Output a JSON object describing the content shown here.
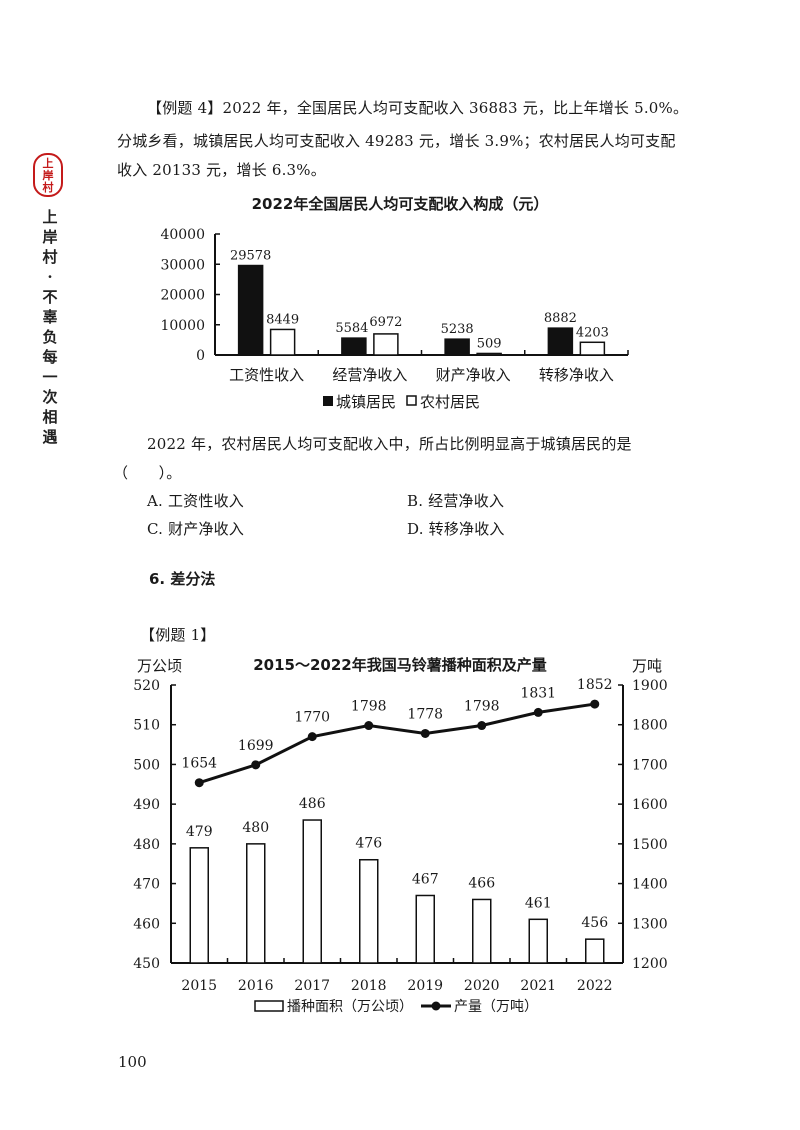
{
  "sidebar": {
    "stamp_text": [
      "上",
      "岸",
      "村"
    ],
    "slogan_chars": [
      "上",
      "岸",
      "村",
      "·",
      "不",
      "辜",
      "负",
      "每",
      "一",
      "次",
      "相",
      "遇"
    ]
  },
  "example4": {
    "line1": "【例题 4】2022 年，全国居民人均可支配收入 36883 元，比上年增长 5.0%。",
    "line2": "分城乡看，城镇居民人均可支配收入 49283 元，增长 3.9%；农村居民人均可支配",
    "line3": "收入 20133 元，增长 6.3%。",
    "question_line1": "2022 年，农村居民人均可支配收入中，所占比例明显高于城镇居民的是",
    "question_line2": "（　　）。",
    "options": {
      "A": "A. 工资性收入",
      "B": "B. 经营净收入",
      "C": "C. 财产净收入",
      "D": "D. 转移净收入"
    }
  },
  "section_heading": "6. 差分法",
  "example1_label": "【例题 1】",
  "page_number": "100",
  "chart_data": [
    {
      "type": "bar",
      "title": "2022年全国居民人均可支配收入构成（元）",
      "categories": [
        "工资性收入",
        "经营净收入",
        "财产净收入",
        "转移净收入"
      ],
      "series": [
        {
          "name": "城镇居民",
          "values": [
            29578,
            5584,
            5238,
            8882
          ],
          "color": "#111111"
        },
        {
          "name": "农村居民",
          "values": [
            8449,
            6972,
            509,
            4203
          ],
          "color": "#ffffff"
        }
      ],
      "yticks": [
        "0",
        "10000",
        "20000",
        "30000",
        "40000"
      ],
      "ylim": [
        0,
        40000
      ],
      "xlabel": "",
      "ylabel": "",
      "legend_position": "bottom",
      "grid": false
    },
    {
      "type": "bar+line",
      "title": "2015～2022年我国马铃薯播种面积及产量",
      "categories": [
        "2015",
        "2016",
        "2017",
        "2018",
        "2019",
        "2020",
        "2021",
        "2022"
      ],
      "series": [
        {
          "name": "播种面积（万公顷）",
          "type": "bar",
          "axis": "left",
          "values": [
            479,
            480,
            486,
            476,
            467,
            466,
            461,
            456
          ]
        },
        {
          "name": "产量（万吨）",
          "type": "line",
          "axis": "right",
          "values": [
            1654,
            1699,
            1770,
            1798,
            1778,
            1798,
            1831,
            1852
          ]
        }
      ],
      "ylabel_left": "万公顷",
      "ylabel_right": "万吨",
      "ylim_left": [
        450,
        520
      ],
      "ylim_right": [
        1200,
        1900
      ],
      "yticks_left": [
        "450",
        "460",
        "470",
        "480",
        "490",
        "500",
        "510",
        "520"
      ],
      "yticks_right": [
        "1200",
        "1300",
        "1400",
        "1500",
        "1600",
        "1700",
        "1800",
        "1900"
      ],
      "legend_position": "bottom",
      "grid": false
    }
  ]
}
